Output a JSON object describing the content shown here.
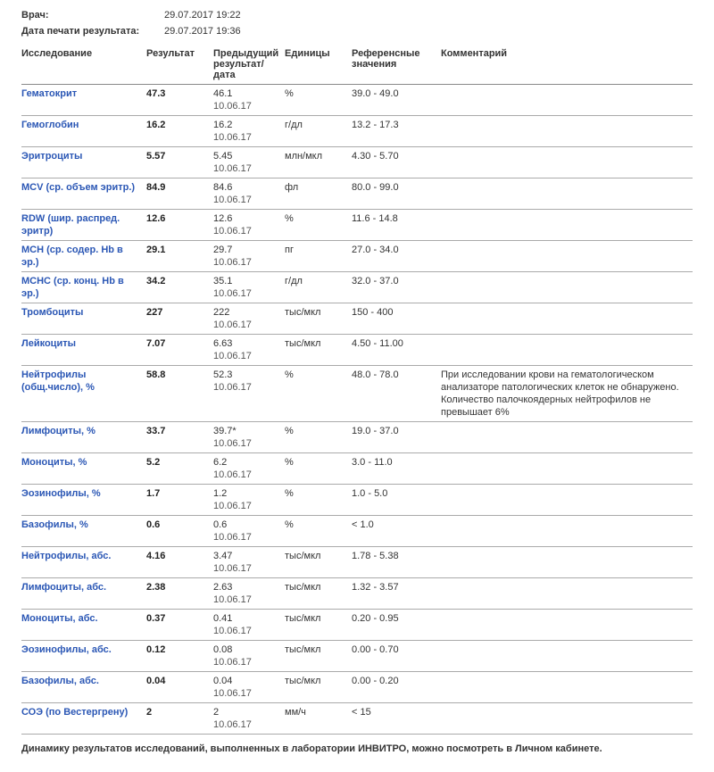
{
  "header": {
    "doctor_label": "Врач:",
    "doctor_date": "29.07.2017 19:22",
    "print_label": "Дата печати результата:",
    "print_date": "29.07.2017 19:36"
  },
  "table": {
    "columns": {
      "name": "Исследование",
      "result": "Результат",
      "prev": "Предыдущий результат/дата",
      "unit": "Единицы",
      "ref": "Референсные значения",
      "comment": "Комментарий"
    },
    "rows": [
      {
        "name": "Гематокрит",
        "result": "47.3",
        "prev_val": "46.1",
        "prev_date": "10.06.17",
        "unit": "%",
        "ref": "39.0 - 49.0",
        "comment": ""
      },
      {
        "name": "Гемоглобин",
        "result": "16.2",
        "prev_val": "16.2",
        "prev_date": "10.06.17",
        "unit": "г/дл",
        "ref": "13.2 - 17.3",
        "comment": ""
      },
      {
        "name": "Эритроциты",
        "result": "5.57",
        "prev_val": "5.45",
        "prev_date": "10.06.17",
        "unit": "млн/мкл",
        "ref": "4.30 - 5.70",
        "comment": ""
      },
      {
        "name": "MCV (ср. объем эритр.)",
        "result": "84.9",
        "prev_val": "84.6",
        "prev_date": "10.06.17",
        "unit": "фл",
        "ref": "80.0 - 99.0",
        "comment": ""
      },
      {
        "name": "RDW (шир. распред. эритр)",
        "result": "12.6",
        "prev_val": "12.6",
        "prev_date": "10.06.17",
        "unit": "%",
        "ref": "11.6 - 14.8",
        "comment": ""
      },
      {
        "name": "MCH (ср. содер. Hb в эр.)",
        "result": "29.1",
        "prev_val": "29.7",
        "prev_date": "10.06.17",
        "unit": "пг",
        "ref": "27.0 - 34.0",
        "comment": ""
      },
      {
        "name": "МСНС (ср. конц. Hb в эр.)",
        "result": "34.2",
        "prev_val": "35.1",
        "prev_date": "10.06.17",
        "unit": "г/дл",
        "ref": "32.0 - 37.0",
        "comment": ""
      },
      {
        "name": "Тромбоциты",
        "result": "227",
        "prev_val": "222",
        "prev_date": "10.06.17",
        "unit": "тыс/мкл",
        "ref": "150 - 400",
        "comment": ""
      },
      {
        "name": "Лейкоциты",
        "result": "7.07",
        "prev_val": "6.63",
        "prev_date": "10.06.17",
        "unit": "тыс/мкл",
        "ref": "4.50 - 11.00",
        "comment": ""
      },
      {
        "name": "Нейтрофилы (общ.число), %",
        "result": "58.8",
        "prev_val": "52.3",
        "prev_date": "10.06.17",
        "unit": "%",
        "ref": "48.0 - 78.0",
        "comment": "При исследовании крови на гематологическом анализаторе патологических клеток не обнаружено. Количество палочкоядерных нейтрофилов не превышает 6%"
      },
      {
        "name": "Лимфоциты, %",
        "result": "33.7",
        "prev_val": "39.7*",
        "prev_date": "10.06.17",
        "unit": "%",
        "ref": "19.0 - 37.0",
        "comment": ""
      },
      {
        "name": "Моноциты, %",
        "result": "5.2",
        "prev_val": "6.2",
        "prev_date": "10.06.17",
        "unit": "%",
        "ref": "3.0 - 11.0",
        "comment": ""
      },
      {
        "name": "Эозинофилы, %",
        "result": "1.7",
        "prev_val": "1.2",
        "prev_date": "10.06.17",
        "unit": "%",
        "ref": "1.0 - 5.0",
        "comment": ""
      },
      {
        "name": "Базофилы, %",
        "result": "0.6",
        "prev_val": "0.6",
        "prev_date": "10.06.17",
        "unit": "%",
        "ref": "< 1.0",
        "comment": ""
      },
      {
        "name": "Нейтрофилы, абс.",
        "result": "4.16",
        "prev_val": "3.47",
        "prev_date": "10.06.17",
        "unit": "тыс/мкл",
        "ref": "1.78 - 5.38",
        "comment": ""
      },
      {
        "name": "Лимфоциты, абс.",
        "result": "2.38",
        "prev_val": "2.63",
        "prev_date": "10.06.17",
        "unit": "тыс/мкл",
        "ref": "1.32 - 3.57",
        "comment": ""
      },
      {
        "name": "Моноциты, абс.",
        "result": "0.37",
        "prev_val": "0.41",
        "prev_date": "10.06.17",
        "unit": "тыс/мкл",
        "ref": "0.20 - 0.95",
        "comment": ""
      },
      {
        "name": "Эозинофилы, абс.",
        "result": "0.12",
        "prev_val": "0.08",
        "prev_date": "10.06.17",
        "unit": "тыс/мкл",
        "ref": "0.00 - 0.70",
        "comment": ""
      },
      {
        "name": "Базофилы, абс.",
        "result": "0.04",
        "prev_val": "0.04",
        "prev_date": "10.06.17",
        "unit": "тыс/мкл",
        "ref": "0.00 - 0.20",
        "comment": ""
      },
      {
        "name": "СОЭ (по Вестергрену)",
        "result": "2",
        "prev_val": "2",
        "prev_date": "10.06.17",
        "unit": "мм/ч",
        "ref": "< 15",
        "comment": ""
      }
    ]
  },
  "footer": "Динамику результатов исследований, выполненных в лаборатории ИНВИТРО, можно посмотреть в Личном кабинете."
}
